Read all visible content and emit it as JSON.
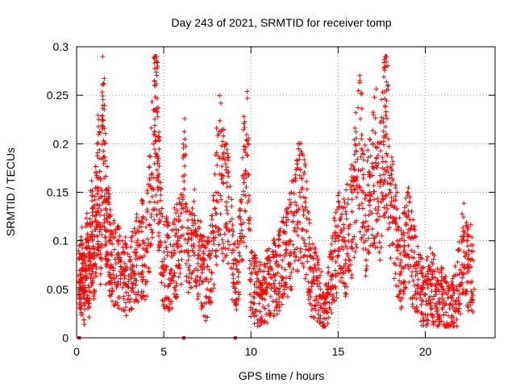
{
  "chart_data": {
    "type": "scatter",
    "title": "Day 243 of 2021, SRMTID for receiver tomp",
    "xlabel": "GPS time / hours",
    "ylabel": "SRMTID / TECUs",
    "xlim": [
      0,
      24
    ],
    "ylim": [
      0,
      0.3
    ],
    "x_ticks": [
      0,
      5,
      10,
      15,
      20
    ],
    "x_tick_labels": [
      "0",
      "5",
      "10",
      "15",
      "20"
    ],
    "y_ticks": [
      0,
      0.05,
      0.1,
      0.15,
      0.2,
      0.25,
      0.3
    ],
    "y_tick_labels": [
      "0",
      "0.05",
      "0.1",
      "0.15",
      "0.2",
      "0.25",
      "0.3"
    ],
    "grid": true,
    "marker": "+",
    "series_color": "#ff0000",
    "sample_points": [
      [
        0.1,
        0.064
      ],
      [
        0.2,
        0.058
      ],
      [
        0.3,
        0.082
      ],
      [
        0.4,
        0.045
      ],
      [
        0.5,
        0.071
      ],
      [
        0.6,
        0.092
      ],
      [
        0.7,
        0.052
      ],
      [
        0.8,
        0.103
      ],
      [
        0.9,
        0.118
      ],
      [
        1.0,
        0.075
      ],
      [
        1.1,
        0.13
      ],
      [
        1.2,
        0.155
      ],
      [
        1.3,
        0.185
      ],
      [
        1.4,
        0.095
      ],
      [
        1.5,
        0.225
      ],
      [
        1.6,
        0.2
      ],
      [
        1.7,
        0.11
      ],
      [
        1.8,
        0.14
      ],
      [
        1.9,
        0.1
      ],
      [
        2.0,
        0.088
      ],
      [
        2.2,
        0.081
      ],
      [
        2.4,
        0.078
      ],
      [
        2.6,
        0.066
      ],
      [
        2.8,
        0.072
      ],
      [
        3.0,
        0.06
      ],
      [
        3.2,
        0.075
      ],
      [
        3.4,
        0.085
      ],
      [
        3.6,
        0.095
      ],
      [
        3.8,
        0.1
      ],
      [
        4.0,
        0.09
      ],
      [
        4.2,
        0.14
      ],
      [
        4.4,
        0.2
      ],
      [
        4.5,
        0.26
      ],
      [
        4.6,
        0.233
      ],
      [
        4.7,
        0.185
      ],
      [
        4.8,
        0.12
      ],
      [
        5.0,
        0.075
      ],
      [
        5.2,
        0.085
      ],
      [
        5.4,
        0.07
      ],
      [
        5.6,
        0.09
      ],
      [
        5.8,
        0.1
      ],
      [
        6.0,
        0.105
      ],
      [
        6.2,
        0.177
      ],
      [
        6.4,
        0.08
      ],
      [
        6.6,
        0.095
      ],
      [
        6.8,
        0.11
      ],
      [
        7.0,
        0.085
      ],
      [
        7.2,
        0.075
      ],
      [
        7.4,
        0.06
      ],
      [
        7.6,
        0.07
      ],
      [
        7.8,
        0.09
      ],
      [
        8.0,
        0.15
      ],
      [
        8.2,
        0.185
      ],
      [
        8.4,
        0.16
      ],
      [
        8.6,
        0.14
      ],
      [
        8.8,
        0.12
      ],
      [
        9.0,
        0.08
      ],
      [
        9.2,
        0.07
      ],
      [
        9.4,
        0.1
      ],
      [
        9.6,
        0.168
      ],
      [
        9.8,
        0.188
      ],
      [
        10.0,
        0.06
      ],
      [
        10.2,
        0.055
      ],
      [
        10.4,
        0.045
      ],
      [
        10.6,
        0.05
      ],
      [
        10.8,
        0.06
      ],
      [
        11.0,
        0.055
      ],
      [
        11.2,
        0.07
      ],
      [
        11.4,
        0.065
      ],
      [
        11.6,
        0.075
      ],
      [
        11.8,
        0.08
      ],
      [
        12.0,
        0.09
      ],
      [
        12.2,
        0.1
      ],
      [
        12.4,
        0.12
      ],
      [
        12.6,
        0.13
      ],
      [
        12.8,
        0.15
      ],
      [
        13.0,
        0.145
      ],
      [
        13.2,
        0.11
      ],
      [
        13.4,
        0.07
      ],
      [
        13.6,
        0.06
      ],
      [
        13.8,
        0.055
      ],
      [
        14.0,
        0.05
      ],
      [
        14.2,
        0.02
      ],
      [
        14.4,
        0.045
      ],
      [
        14.6,
        0.06
      ],
      [
        14.8,
        0.09
      ],
      [
        15.0,
        0.105
      ],
      [
        15.2,
        0.11
      ],
      [
        15.4,
        0.1
      ],
      [
        15.6,
        0.115
      ],
      [
        15.8,
        0.13
      ],
      [
        16.0,
        0.165
      ],
      [
        16.2,
        0.2
      ],
      [
        16.4,
        0.19
      ],
      [
        16.6,
        0.12
      ],
      [
        16.8,
        0.15
      ],
      [
        17.0,
        0.175
      ],
      [
        17.2,
        0.185
      ],
      [
        17.4,
        0.16
      ],
      [
        17.6,
        0.213
      ],
      [
        17.7,
        0.238
      ],
      [
        17.8,
        0.226
      ],
      [
        18.0,
        0.15
      ],
      [
        18.2,
        0.12
      ],
      [
        18.4,
        0.1
      ],
      [
        18.6,
        0.08
      ],
      [
        18.8,
        0.1
      ],
      [
        19.0,
        0.108
      ],
      [
        19.2,
        0.09
      ],
      [
        19.4,
        0.075
      ],
      [
        19.6,
        0.06
      ],
      [
        19.8,
        0.05
      ],
      [
        20.0,
        0.045
      ],
      [
        20.2,
        0.06
      ],
      [
        20.4,
        0.055
      ],
      [
        20.6,
        0.05
      ],
      [
        20.8,
        0.04
      ],
      [
        21.0,
        0.045
      ],
      [
        21.2,
        0.035
      ],
      [
        21.4,
        0.03
      ],
      [
        21.6,
        0.038
      ],
      [
        21.8,
        0.05
      ],
      [
        22.0,
        0.07
      ],
      [
        22.2,
        0.1
      ],
      [
        22.4,
        0.075
      ],
      [
        22.6,
        0.08
      ],
      [
        22.8,
        0.05
      ]
    ],
    "zero_markers_x": [
      0.15,
      6.15,
      9.1
    ]
  }
}
